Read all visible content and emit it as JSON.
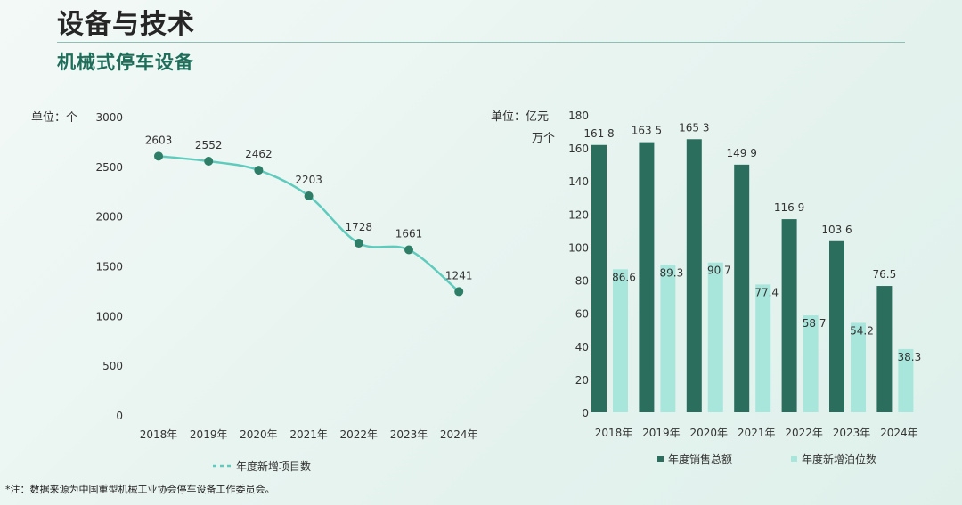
{
  "header": {
    "title": "设备与技术",
    "subtitle": "机械式停车设备"
  },
  "footnote": "*注：数据来源为中国重型机械工业协会停车设备工作委员会。",
  "chart_data": [
    {
      "type": "line",
      "unit_label": "单位：个",
      "x": [
        "2018年",
        "2019年",
        "2020年",
        "2021年",
        "2022年",
        "2023年",
        "2024年"
      ],
      "series": [
        {
          "name": "年度新增项目数",
          "values": [
            2603,
            2552,
            2462,
            2203,
            1728,
            1661,
            1241
          ],
          "color": "#5fcbbd",
          "marker_color": "#2e7d67"
        }
      ],
      "ylim": [
        0,
        3000
      ],
      "yticks": [
        0,
        500,
        1000,
        1500,
        2000,
        2500,
        3000
      ],
      "legend_position": "bottom-center",
      "grid": false
    },
    {
      "type": "bar",
      "unit_label_line1": "单位：亿元",
      "unit_label_line2": "万个",
      "categories": [
        "2018年",
        "2019年",
        "2020年",
        "2021年",
        "2022年",
        "2023年",
        "2024年"
      ],
      "series": [
        {
          "name": "年度销售总额",
          "values": [
            161.8,
            163.5,
            165.3,
            149.9,
            116.9,
            103.6,
            76.5
          ],
          "labels": [
            "161 8",
            "163 5",
            "165 3",
            "149 9",
            "116 9",
            "103 6",
            "76.5"
          ],
          "color": "#2b6e5e"
        },
        {
          "name": "年度新增泊位数",
          "values": [
            86.6,
            89.3,
            90.7,
            77.4,
            58.7,
            54.2,
            38.3
          ],
          "labels": [
            "86.6",
            "89.3",
            "90 7",
            "77.4",
            "58 7",
            "54.2",
            "38.3"
          ],
          "color": "#a8e6dc"
        }
      ],
      "ylim": [
        0,
        180
      ],
      "yticks": [
        0,
        20,
        40,
        60,
        80,
        100,
        120,
        140,
        160,
        180
      ],
      "legend_position": "bottom-center",
      "grid": false
    }
  ]
}
